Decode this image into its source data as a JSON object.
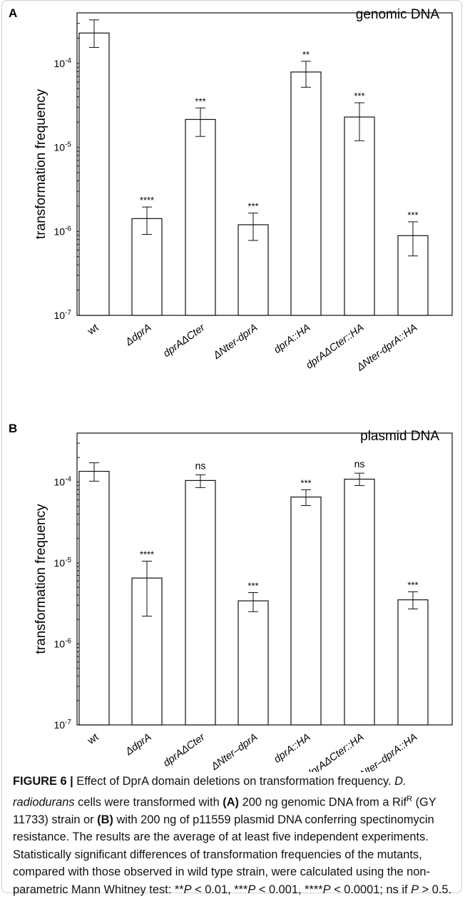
{
  "chart_data": [
    {
      "type": "bar",
      "panel_label": "A",
      "annotation": "genomic DNA",
      "ylabel": "transformation frequency",
      "yscale": "log",
      "ylim": [
        1e-07,
        0.0004
      ],
      "yticks": [
        {
          "value": 1e-07,
          "base": "10",
          "exp": "-7"
        },
        {
          "value": 1e-06,
          "base": "10",
          "exp": "-6"
        },
        {
          "value": 1e-05,
          "base": "10",
          "exp": "-5"
        },
        {
          "value": 0.0001,
          "base": "10",
          "exp": "-4"
        }
      ],
      "categories": [
        "wt",
        "ΔdprA",
        "dprAΔCter",
        "ΔNter-dprA",
        "dprA::HA",
        "dprAΔCter::HA",
        "ΔNter-dprA::HA"
      ],
      "values": [
        0.00023,
        1.42e-06,
        2.15e-05,
        1.2e-06,
        7.9e-05,
        2.3e-05,
        8.9e-07
      ],
      "error_low": [
        0.000155,
        9.2e-07,
        1.35e-05,
        7.8e-07,
        5.2e-05,
        1.2e-05,
        5.1e-07
      ],
      "error_high": [
        0.00033,
        1.95e-06,
        2.95e-05,
        1.65e-06,
        0.000106,
        3.4e-05,
        1.3e-06
      ],
      "significance": [
        "",
        "****",
        "***",
        "***",
        "**",
        "***",
        "***"
      ]
    },
    {
      "type": "bar",
      "panel_label": "B",
      "annotation": "plasmid DNA",
      "ylabel": "transformation frequency",
      "yscale": "log",
      "ylim": [
        1e-07,
        0.0004
      ],
      "yticks": [
        {
          "value": 1e-07,
          "base": "10",
          "exp": "-7"
        },
        {
          "value": 1e-06,
          "base": "10",
          "exp": "-6"
        },
        {
          "value": 1e-05,
          "base": "10",
          "exp": "-5"
        },
        {
          "value": 0.0001,
          "base": "10",
          "exp": "-4"
        }
      ],
      "categories": [
        "wt",
        "ΔdprA",
        "dprAΔCter",
        "ΔNter–dprA",
        "dprA::HA",
        "dprAΔCter::HA",
        "ΔNter–dprA::HA"
      ],
      "values": [
        0.000135,
        6.5e-06,
        0.000104,
        3.4e-06,
        6.5e-05,
        0.000108,
        3.5e-06
      ],
      "error_low": [
        0.000102,
        2.2e-06,
        8.5e-05,
        2.5e-06,
        5.1e-05,
        9e-05,
        2.7e-06
      ],
      "error_high": [
        0.000172,
        1.05e-05,
        0.000122,
        4.3e-06,
        8e-05,
        0.000128,
        4.4e-06
      ],
      "significance": [
        "",
        "****",
        "ns",
        "***",
        "***",
        "ns",
        "***"
      ]
    }
  ],
  "caption": {
    "label": "FIGURE 6 |",
    "text_1": " Effect of DprA domain deletions on transformation frequency. ",
    "species_italic": "D. radiodurans",
    "text_2": " cells were transformed with ",
    "part_a": "(A)",
    "text_3": " 200 ng genomic DNA from a Rif",
    "sup_r": "R",
    "text_4": " (GY 11733) strain or ",
    "part_b": "(B)",
    "text_5": " with 200 ng of p11559 plasmid DNA conferring spectinomycin resistance. The results are the average of at least five independent experiments. Statistically significant differences of transformation frequencies of the mutants, compared with those observed in wild type strain, were calculated using the non-parametric Mann Whitney test: **",
    "p1": "P",
    "text_6": " < 0.01, ***",
    "p2": "P",
    "text_7": " < 0.001, ****",
    "p3": "P",
    "text_8": " < 0.0001; ns if ",
    "p4": "P",
    "text_9": " > 0.5."
  }
}
